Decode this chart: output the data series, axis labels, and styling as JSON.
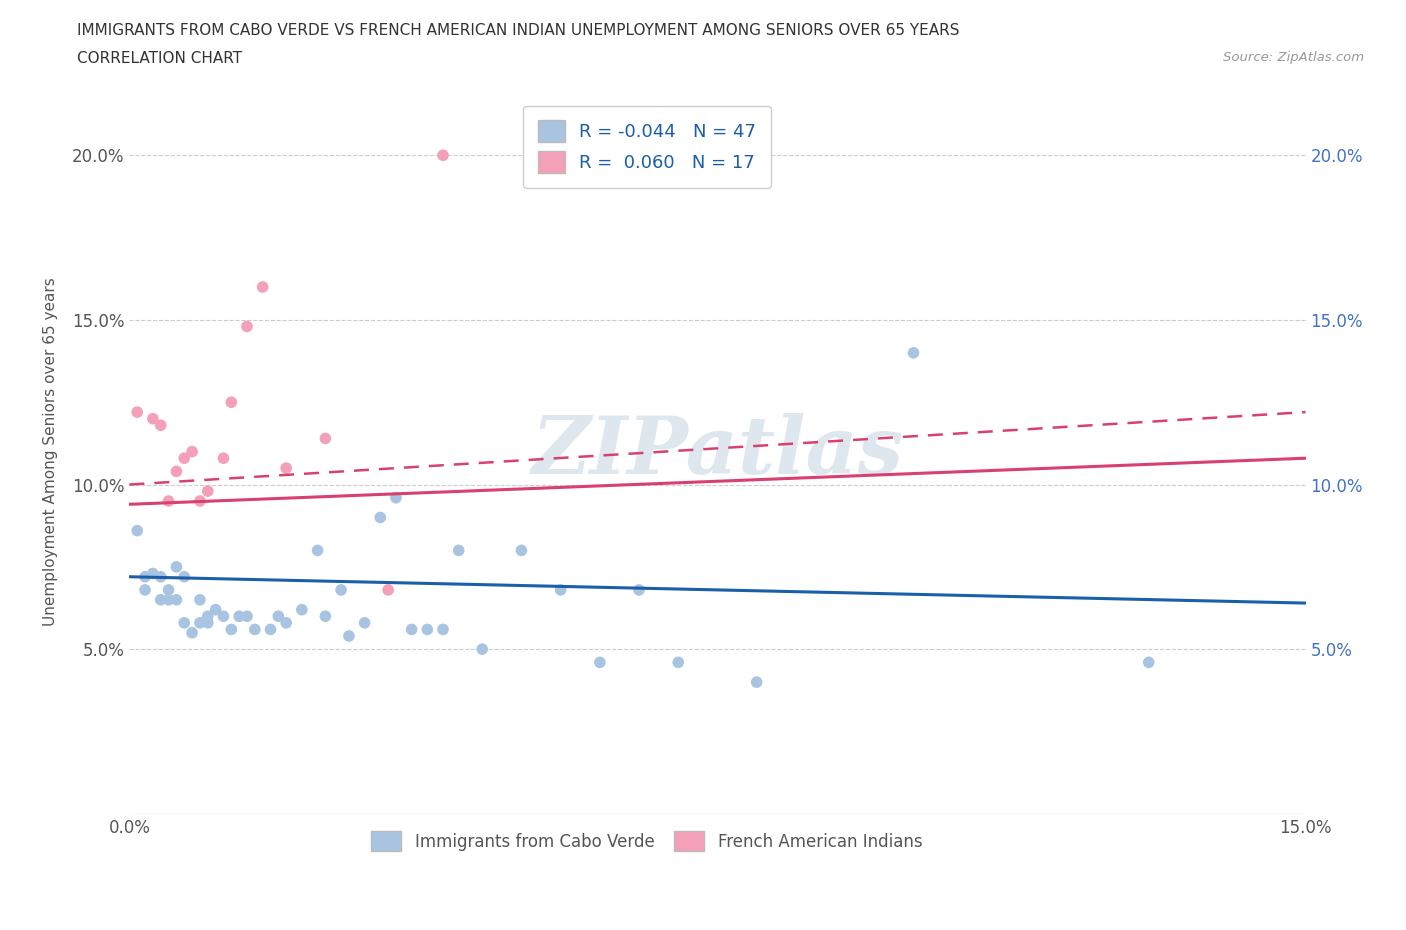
{
  "title1": "IMMIGRANTS FROM CABO VERDE VS FRENCH AMERICAN INDIAN UNEMPLOYMENT AMONG SENIORS OVER 65 YEARS",
  "title2": "CORRELATION CHART",
  "source": "Source: ZipAtlas.com",
  "ylabel_label": "Unemployment Among Seniors over 65 years",
  "xlim": [
    0.0,
    0.15
  ],
  "ylim": [
    0.0,
    0.22
  ],
  "xticks": [
    0.0,
    0.03,
    0.06,
    0.09,
    0.12,
    0.15
  ],
  "yticks": [
    0.05,
    0.1,
    0.15,
    0.2
  ],
  "ytick_labels": [
    "5.0%",
    "10.0%",
    "15.0%",
    "20.0%"
  ],
  "xtick_labels": [
    "0.0%",
    "",
    "",
    "",
    "",
    "15.0%"
  ],
  "blue_color": "#a8c4e0",
  "pink_color": "#f4a0b8",
  "blue_line_color": "#1a5fa8",
  "pink_line_color": "#d94070",
  "legend_R1": "-0.044",
  "legend_N1": "47",
  "legend_R2": "0.060",
  "legend_N2": "17",
  "watermark": "ZIPatlas",
  "cabo_verde_x": [
    0.001,
    0.002,
    0.002,
    0.003,
    0.004,
    0.004,
    0.005,
    0.005,
    0.006,
    0.006,
    0.007,
    0.007,
    0.008,
    0.009,
    0.009,
    0.01,
    0.01,
    0.011,
    0.012,
    0.013,
    0.014,
    0.015,
    0.016,
    0.018,
    0.019,
    0.02,
    0.022,
    0.024,
    0.025,
    0.027,
    0.028,
    0.03,
    0.032,
    0.034,
    0.036,
    0.038,
    0.04,
    0.042,
    0.045,
    0.05,
    0.055,
    0.06,
    0.065,
    0.07,
    0.08,
    0.1,
    0.13
  ],
  "cabo_verde_y": [
    0.086,
    0.072,
    0.068,
    0.073,
    0.065,
    0.072,
    0.068,
    0.065,
    0.075,
    0.065,
    0.072,
    0.058,
    0.055,
    0.058,
    0.065,
    0.06,
    0.058,
    0.062,
    0.06,
    0.056,
    0.06,
    0.06,
    0.056,
    0.056,
    0.06,
    0.058,
    0.062,
    0.08,
    0.06,
    0.068,
    0.054,
    0.058,
    0.09,
    0.096,
    0.056,
    0.056,
    0.056,
    0.08,
    0.05,
    0.08,
    0.068,
    0.046,
    0.068,
    0.046,
    0.04,
    0.14,
    0.046
  ],
  "french_indian_x": [
    0.001,
    0.003,
    0.004,
    0.005,
    0.006,
    0.007,
    0.008,
    0.009,
    0.01,
    0.012,
    0.013,
    0.015,
    0.017,
    0.02,
    0.025,
    0.033,
    0.04
  ],
  "french_indian_y": [
    0.122,
    0.12,
    0.118,
    0.095,
    0.104,
    0.108,
    0.11,
    0.095,
    0.098,
    0.108,
    0.125,
    0.148,
    0.16,
    0.105,
    0.114,
    0.068,
    0.2
  ],
  "blue_trend": [
    0.072,
    0.064
  ],
  "pink_trend_solid": [
    0.094,
    0.108
  ],
  "pink_trend_dashed": [
    0.1,
    0.122
  ]
}
